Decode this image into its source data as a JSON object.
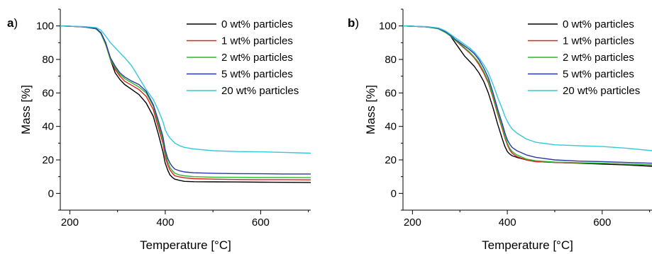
{
  "chart_data": [
    {
      "type": "line",
      "panel_label": "a",
      "panel_label_suffix": ")",
      "xlabel": "Temperature [°C]",
      "ylabel": "Mass [%]",
      "xlim": [
        180,
        705
      ],
      "ylim": [
        -10,
        110
      ],
      "xticks": [
        200,
        400,
        600
      ],
      "yticks": [
        0,
        20,
        40,
        60,
        80,
        100
      ],
      "legend_position": "top-right",
      "grid": false,
      "series": [
        {
          "name": "0 wt% particles",
          "color": "#000000",
          "x": [
            180,
            200,
            230,
            255,
            265,
            275,
            285,
            295,
            305,
            315,
            330,
            345,
            360,
            375,
            385,
            395,
            400,
            405,
            410,
            415,
            420,
            430,
            440,
            460,
            500,
            550,
            600,
            650,
            705
          ],
          "y": [
            100,
            99.8,
            99.5,
            98.5,
            96,
            90,
            80,
            72,
            68,
            65,
            62,
            59,
            54,
            46,
            36,
            25,
            18,
            14,
            11,
            9.5,
            8.5,
            7.8,
            7.2,
            7,
            6.9,
            6.8,
            6.7,
            6.6,
            6.5
          ]
        },
        {
          "name": "1 wt% particles",
          "color": "#e02020",
          "x": [
            180,
            200,
            230,
            255,
            265,
            275,
            285,
            295,
            305,
            315,
            330,
            345,
            360,
            375,
            385,
            395,
            400,
            405,
            410,
            415,
            420,
            430,
            440,
            460,
            500,
            550,
            600,
            650,
            705
          ],
          "y": [
            100,
            99.8,
            99.4,
            98.3,
            95.5,
            89,
            80,
            74,
            70,
            67,
            64.5,
            62,
            58,
            50,
            40,
            30,
            22,
            17,
            14,
            12,
            10.5,
            9.8,
            9.3,
            8.8,
            8.5,
            8.3,
            8.2,
            8.2,
            8.1
          ]
        },
        {
          "name": "2 wt% particles",
          "color": "#2eb82e",
          "x": [
            180,
            200,
            230,
            255,
            265,
            275,
            285,
            295,
            305,
            315,
            330,
            345,
            360,
            375,
            385,
            395,
            400,
            405,
            410,
            415,
            420,
            430,
            440,
            460,
            500,
            550,
            600,
            650,
            705
          ],
          "y": [
            100,
            99.8,
            99.4,
            98.3,
            95.5,
            89,
            80,
            75,
            71,
            68.5,
            66,
            63.5,
            60,
            52,
            42,
            32,
            24,
            19,
            15.5,
            13.5,
            12,
            11,
            10.5,
            10,
            9.7,
            9.6,
            9.5,
            9.5,
            9.4
          ]
        },
        {
          "name": "5 wt% particles",
          "color": "#2a36a8",
          "x": [
            180,
            200,
            230,
            255,
            265,
            275,
            285,
            295,
            305,
            315,
            330,
            345,
            360,
            375,
            385,
            395,
            400,
            405,
            410,
            415,
            420,
            430,
            440,
            460,
            500,
            550,
            600,
            650,
            705
          ],
          "y": [
            100,
            99.8,
            99.4,
            98.4,
            96,
            90,
            81,
            76,
            72,
            69.5,
            67,
            65,
            61,
            53,
            44,
            34,
            26,
            21,
            18,
            16,
            14.5,
            13.5,
            12.8,
            12.3,
            12,
            11.8,
            11.7,
            11.6,
            11.6
          ]
        },
        {
          "name": "20 wt% particles",
          "color": "#33c9d8",
          "x": [
            180,
            200,
            230,
            255,
            265,
            275,
            285,
            295,
            305,
            315,
            330,
            345,
            360,
            375,
            385,
            395,
            400,
            405,
            410,
            420,
            430,
            440,
            460,
            500,
            550,
            600,
            650,
            705
          ],
          "y": [
            100,
            99.8,
            99.6,
            99,
            97.5,
            94,
            90,
            87,
            84,
            81,
            76,
            69,
            62,
            56,
            50,
            43,
            38,
            35,
            33,
            30,
            28.5,
            27.5,
            26.5,
            25.5,
            25,
            24.8,
            24.5,
            24
          ]
        }
      ]
    },
    {
      "type": "line",
      "panel_label": "b",
      "panel_label_suffix": ")",
      "xlabel": "Temperature [°C]",
      "ylabel": "Mass [%]",
      "xlim": [
        180,
        705
      ],
      "ylim": [
        -10,
        110
      ],
      "xticks": [
        200,
        400,
        600
      ],
      "yticks": [
        0,
        20,
        40,
        60,
        80,
        100
      ],
      "legend_position": "top-right",
      "grid": false,
      "series": [
        {
          "name": "0 wt% particles",
          "color": "#000000",
          "x": [
            180,
            200,
            230,
            255,
            270,
            280,
            290,
            300,
            310,
            320,
            330,
            340,
            350,
            360,
            370,
            380,
            390,
            395,
            400,
            405,
            410,
            420,
            440,
            460,
            500,
            550,
            600,
            650,
            705
          ],
          "y": [
            100,
            99.8,
            99.5,
            98.5,
            96.5,
            94,
            90,
            86,
            82,
            79,
            76,
            72,
            67,
            60,
            51,
            41,
            32,
            28,
            25,
            23.5,
            22.5,
            21.5,
            20,
            19,
            18.5,
            18,
            17.5,
            17,
            16.2
          ]
        },
        {
          "name": "1 wt% particles",
          "color": "#e02020",
          "x": [
            180,
            200,
            230,
            255,
            270,
            280,
            290,
            300,
            310,
            320,
            330,
            340,
            350,
            360,
            370,
            380,
            390,
            395,
            400,
            405,
            410,
            420,
            440,
            460,
            500,
            550,
            600,
            650,
            705
          ],
          "y": [
            100,
            99.8,
            99.5,
            98.3,
            96,
            94,
            91.5,
            89,
            86.5,
            84,
            81,
            77,
            72,
            66,
            57,
            47,
            38,
            33,
            29,
            26,
            24,
            22,
            20,
            19,
            18.5,
            18.2,
            18,
            17.5,
            17
          ]
        },
        {
          "name": "2 wt% particles",
          "color": "#2eb82e",
          "x": [
            180,
            200,
            230,
            255,
            270,
            280,
            290,
            300,
            310,
            320,
            330,
            340,
            350,
            360,
            370,
            380,
            390,
            395,
            400,
            405,
            410,
            420,
            440,
            460,
            500,
            550,
            600,
            650,
            705
          ],
          "y": [
            100,
            99.8,
            99.5,
            98.3,
            96,
            94,
            91.5,
            89.5,
            87,
            84.5,
            81.5,
            78,
            73,
            67,
            58,
            48,
            39,
            34,
            30,
            27,
            25,
            23,
            20.5,
            19.5,
            18.7,
            18.3,
            18,
            17.5,
            17
          ]
        },
        {
          "name": "5 wt% particles",
          "color": "#2a36a8",
          "x": [
            180,
            200,
            230,
            255,
            270,
            280,
            290,
            300,
            310,
            320,
            330,
            340,
            350,
            360,
            370,
            380,
            390,
            395,
            400,
            405,
            410,
            420,
            440,
            460,
            500,
            550,
            600,
            650,
            705
          ],
          "y": [
            100,
            99.8,
            99.5,
            98.5,
            96.5,
            94.5,
            92,
            90,
            88,
            86,
            83.5,
            80,
            75,
            69,
            60,
            50,
            41,
            36,
            32,
            29.5,
            27.5,
            25.5,
            23,
            21.5,
            20,
            19.3,
            19,
            18.5,
            18
          ]
        },
        {
          "name": "20 wt% particles",
          "color": "#33c9d8",
          "x": [
            180,
            200,
            230,
            255,
            270,
            280,
            290,
            300,
            310,
            320,
            330,
            340,
            350,
            360,
            370,
            380,
            390,
            395,
            400,
            405,
            410,
            420,
            440,
            460,
            500,
            550,
            600,
            650,
            705
          ],
          "y": [
            100,
            99.8,
            99.6,
            98.8,
            97,
            95,
            93,
            91,
            89,
            87,
            84.5,
            81,
            77,
            72,
            65,
            57,
            50,
            46,
            43,
            40.5,
            38.5,
            36,
            32.5,
            30.5,
            29,
            28.5,
            28,
            27,
            25.5
          ]
        }
      ]
    }
  ]
}
